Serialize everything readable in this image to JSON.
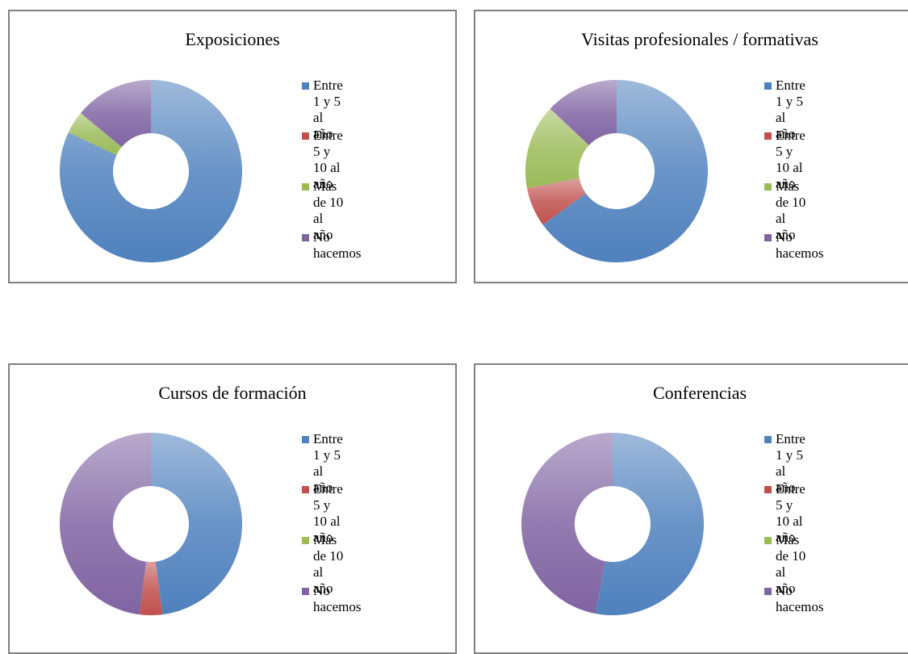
{
  "chart_data": [
    {
      "type": "pie",
      "title": "Exposiciones",
      "categories": [
        "Entre 1 y 5 al año",
        "Entre 5 y 10 al año",
        "Más de 10 al año",
        "No hacemos"
      ],
      "values": [
        82,
        0,
        4,
        14
      ],
      "colors": [
        "#4f81bd",
        "#c0504d",
        "#9bbb59",
        "#8064a2"
      ]
    },
    {
      "type": "pie",
      "title": "Visitas profesionales / formativas",
      "categories": [
        "Entre 1 y 5 al año",
        "Entre 5 y 10 al año",
        "Más de 10 al año",
        "No hacemos"
      ],
      "values": [
        65,
        7,
        15,
        13
      ],
      "colors": [
        "#4f81bd",
        "#c0504d",
        "#9bbb59",
        "#8064a2"
      ]
    },
    {
      "type": "pie",
      "title": "Cursos de formación",
      "categories": [
        "Entre 1 y 5 al año",
        "Entre 5 y 10 al año",
        "Más de 10 al año",
        "No hacemos"
      ],
      "values": [
        48,
        4,
        0,
        48
      ],
      "colors": [
        "#4f81bd",
        "#c0504d",
        "#9bbb59",
        "#8064a2"
      ]
    },
    {
      "type": "pie",
      "title": "Conferencias",
      "categories": [
        "Entre 1 y 5 al año",
        "Entre 5 y 10 al año",
        "Más de 10 al año",
        "No hacemos"
      ],
      "values": [
        53,
        0,
        0,
        47
      ],
      "colors": [
        "#4f81bd",
        "#c0504d",
        "#9bbb59",
        "#8064a2"
      ]
    }
  ]
}
